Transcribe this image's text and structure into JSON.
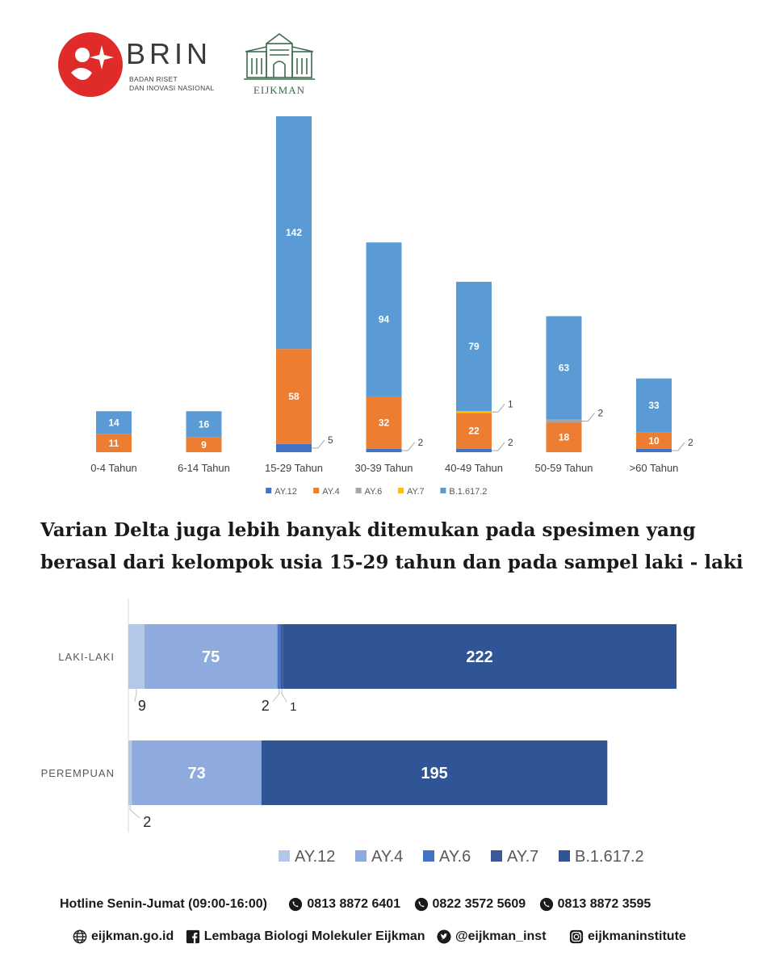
{
  "header": {
    "brin_name": "BRIN",
    "brin_subtitle_line1": "BADAN RISET",
    "brin_subtitle_line2": "DAN INOVASI NASIONAL",
    "eijkman_name": "EIJKMAN"
  },
  "headline": {
    "line1": "Varian Delta juga lebih banyak ditemukan pada spesimen yang",
    "line2": "berasal dari kelompok usia 15-29 tahun dan pada sampel laki - laki"
  },
  "colors": {
    "chart1": [
      "#4472c4",
      "#ed7d31",
      "#a5a5a5",
      "#ffc000",
      "#5b9bd5"
    ],
    "chart2": [
      "#b4c7e7",
      "#8faadc",
      "#4472c4",
      "#3a5a9a",
      "#2f5597"
    ]
  },
  "chart_data": [
    {
      "type": "bar",
      "stacked": true,
      "orientation": "vertical",
      "categories": [
        "0-4 Tahun",
        "6-14 Tahun",
        "15-29 Tahun",
        "30-39 Tahun",
        "40-49 Tahun",
        "50-59 Tahun",
        ">60 Tahun"
      ],
      "series": [
        {
          "name": "AY.12",
          "values": [
            0,
            0,
            5,
            2,
            2,
            0,
            2
          ]
        },
        {
          "name": "AY.4",
          "values": [
            11,
            9,
            58,
            32,
            22,
            18,
            10
          ]
        },
        {
          "name": "AY.6",
          "values": [
            0,
            0,
            0,
            0,
            0,
            2,
            0
          ]
        },
        {
          "name": "AY.7",
          "values": [
            0,
            0,
            0,
            0,
            1,
            0,
            0
          ]
        },
        {
          "name": "B.1.617.2",
          "values": [
            14,
            16,
            142,
            94,
            79,
            63,
            33
          ]
        }
      ],
      "legend_position": "bottom",
      "grid": false
    },
    {
      "type": "bar",
      "stacked": true,
      "orientation": "horizontal",
      "categories": [
        "LAKI-LAKI",
        "PEREMPUAN"
      ],
      "series": [
        {
          "name": "AY.12",
          "values": [
            9,
            2
          ]
        },
        {
          "name": "AY.4",
          "values": [
            75,
            73
          ]
        },
        {
          "name": "AY.6",
          "values": [
            2,
            0
          ]
        },
        {
          "name": "AY.7",
          "values": [
            1,
            0
          ]
        },
        {
          "name": "B.1.617.2",
          "values": [
            222,
            195
          ]
        }
      ],
      "legend_position": "bottom",
      "grid": false
    }
  ],
  "footer": {
    "hotline_label": "Hotline Senin-Jumat (09:00-16:00)",
    "phones": [
      "0813 8872 6401",
      "0822 3572 5609",
      "0813 8872 3595"
    ],
    "website": "eijkman.go.id",
    "facebook": "Lembaga Biologi Molekuler Eijkman",
    "twitter": "@eijkman_inst",
    "instagram": "eijkmaninstitute"
  }
}
